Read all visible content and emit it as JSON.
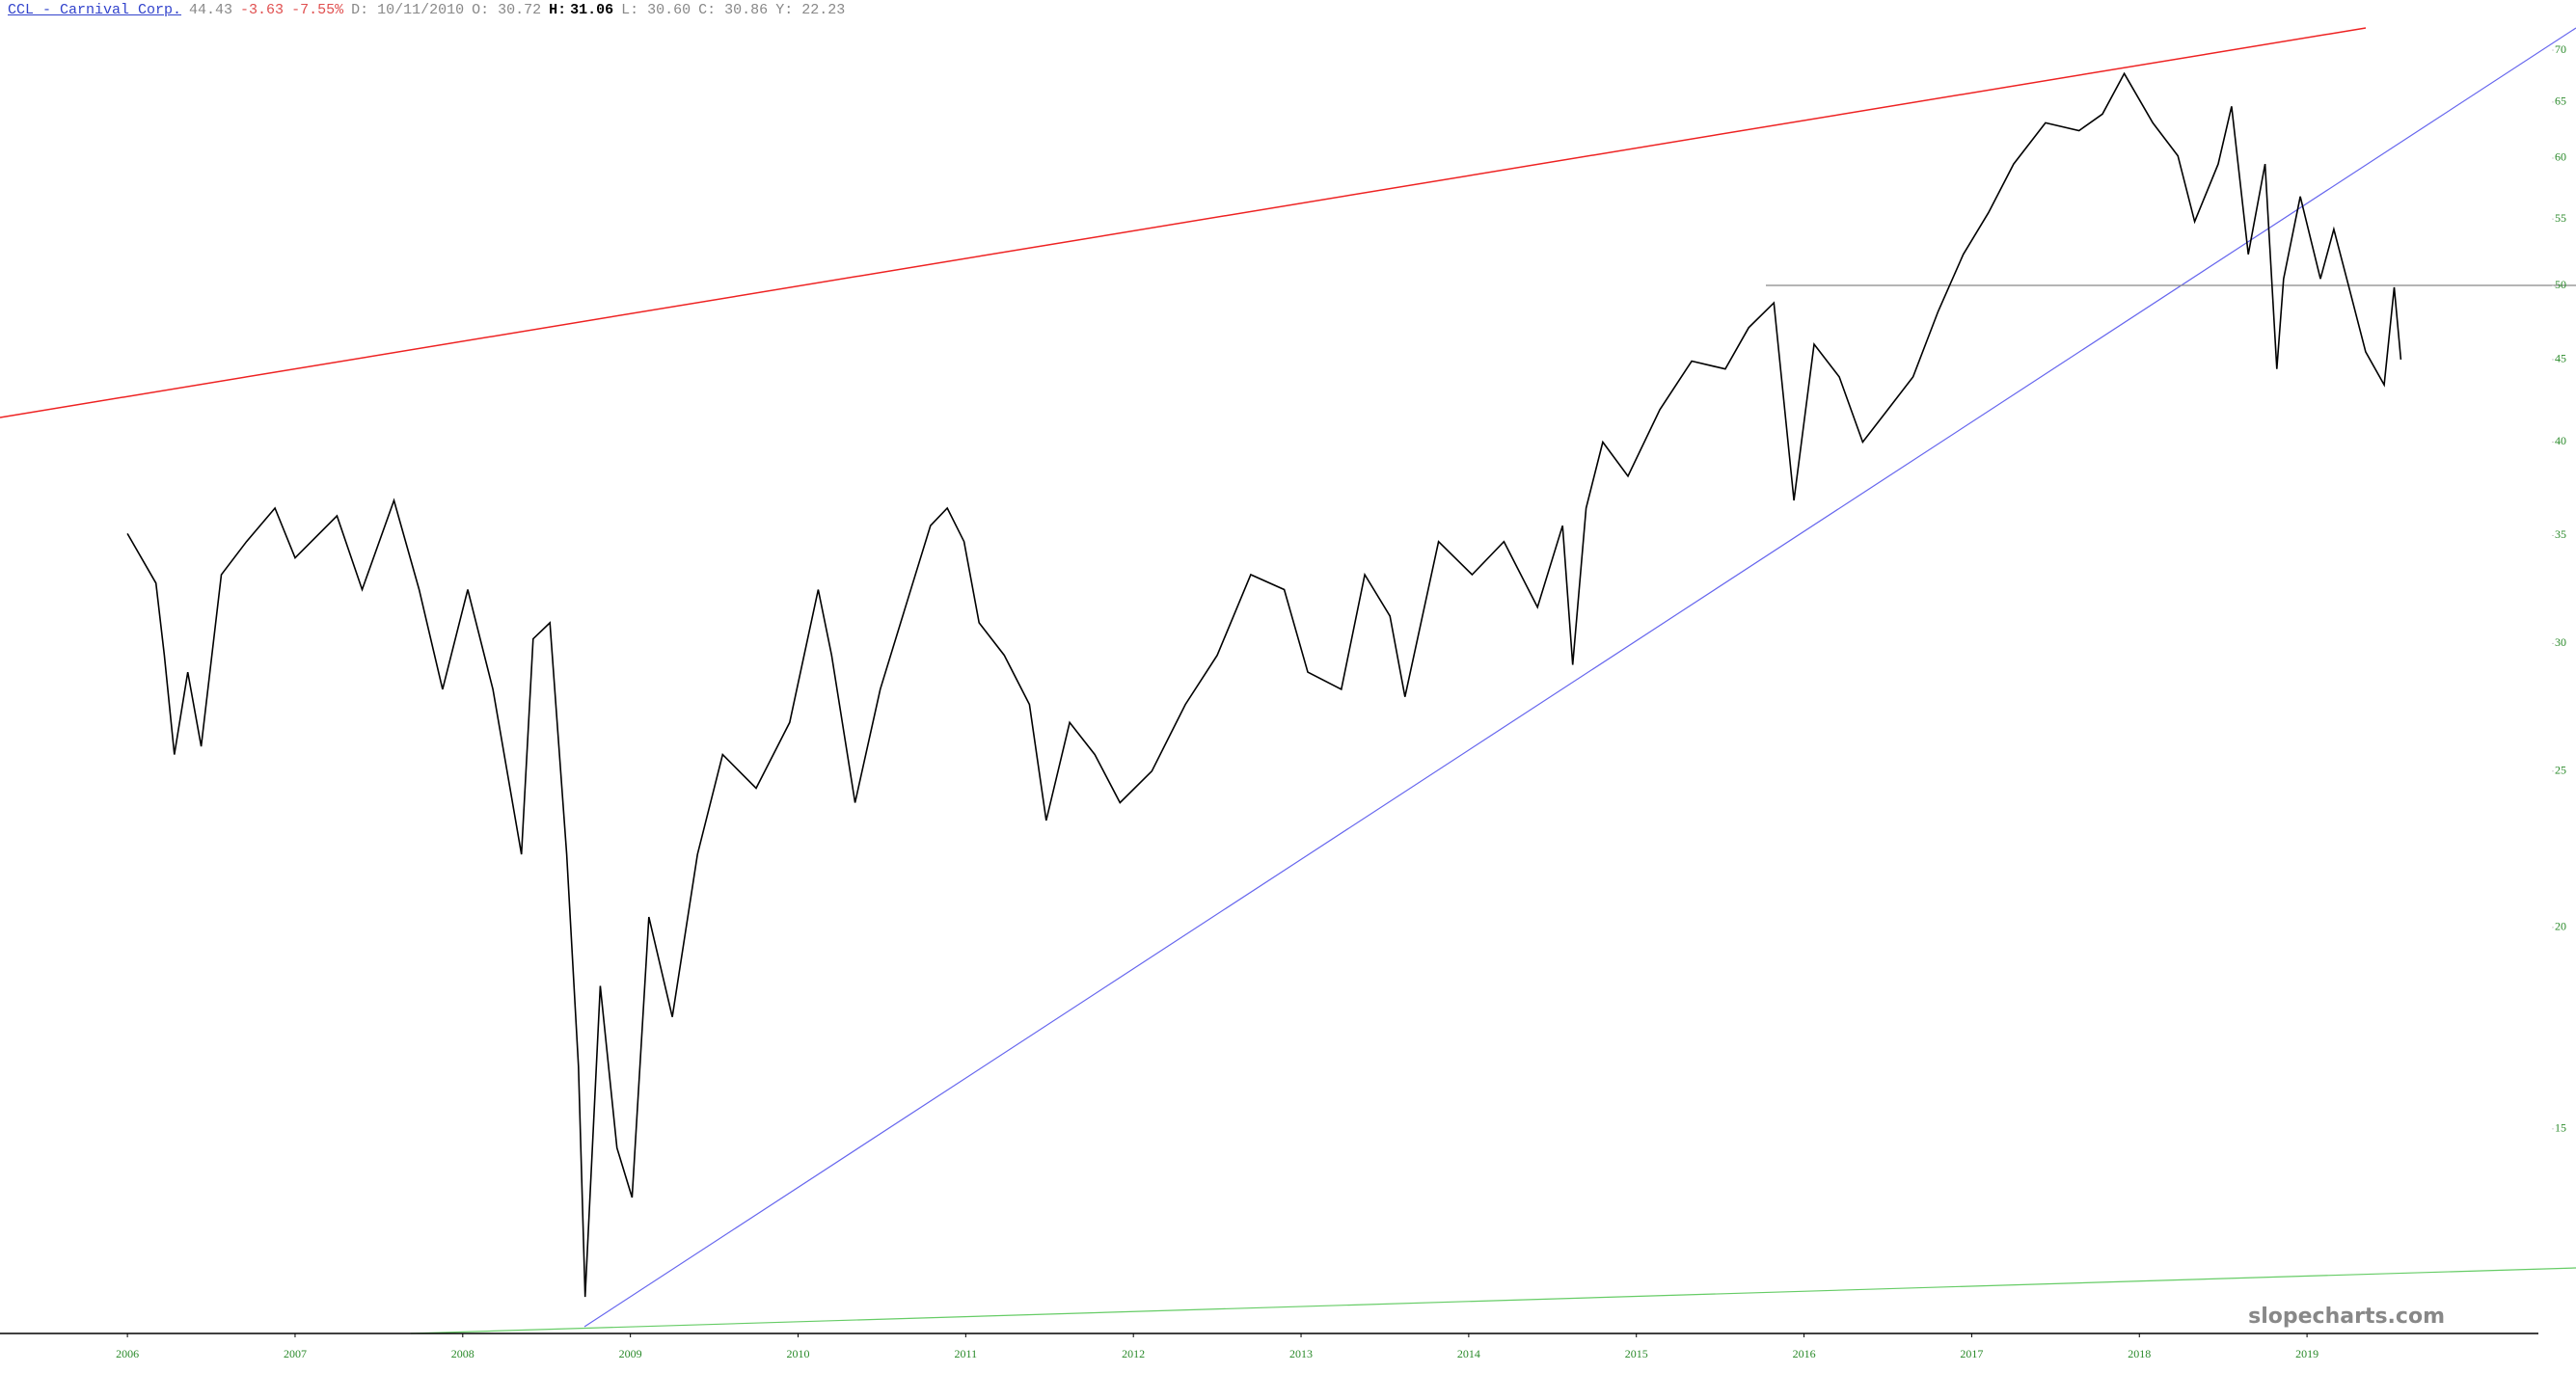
{
  "chart_data": {
    "type": "line",
    "header": {
      "ticker": "CCL - Carnival Corp.",
      "last": "44.43",
      "change": "-3.63",
      "change_pct": "-7.55%",
      "date": "D: 10/11/2010",
      "open": "O: 30.72",
      "high_label": "H:",
      "high": "31.06",
      "low": "L: 30.60",
      "close": "C: 30.86",
      "y": "Y: 22.23"
    },
    "watermark": "slopecharts.com",
    "log_scale": true,
    "xlim": [
      2005.24,
      2020.38
    ],
    "xticks": [
      2006,
      2007,
      2008,
      2009,
      2010,
      2011,
      2012,
      2013,
      2014,
      2015,
      2016,
      2017,
      2018,
      2019
    ],
    "ylim": [
      11.2,
      75.2
    ],
    "yticks": [
      15,
      20,
      25,
      30,
      35,
      40,
      45,
      50,
      55,
      60,
      65,
      70
    ],
    "series": [
      {
        "color": "#000000",
        "x": [
          2006.0,
          2006.17,
          2006.22,
          2006.28,
          2006.36,
          2006.44,
          2006.56,
          2006.71,
          2006.88,
          2007.0,
          2007.25,
          2007.4,
          2007.59,
          2007.74,
          2007.88,
          2008.03,
          2008.18,
          2008.35,
          2008.42,
          2008.52,
          2008.62,
          2008.69,
          2008.73,
          2008.82,
          2008.92,
          2009.01,
          2009.11,
          2009.25,
          2009.4,
          2009.55,
          2009.75,
          2009.95,
          2010.12,
          2010.2,
          2010.34,
          2010.49,
          2010.64,
          2010.79,
          2010.89,
          2010.99,
          2011.08,
          2011.23,
          2011.38,
          2011.48,
          2011.62,
          2011.77,
          2011.92,
          2012.11,
          2012.31,
          2012.5,
          2012.7,
          2012.9,
          2013.04,
          2013.24,
          2013.38,
          2013.53,
          2013.62,
          2013.82,
          2014.02,
          2014.21,
          2014.41,
          2014.56,
          2014.62,
          2014.7,
          2014.8,
          2014.95,
          2015.14,
          2015.33,
          2015.53,
          2015.67,
          2015.82,
          2015.94,
          2016.06,
          2016.21,
          2016.35,
          2016.5,
          2016.65,
          2016.8,
          2016.95,
          2017.1,
          2017.25,
          2017.44,
          2017.64,
          2017.78,
          2017.91,
          2018.08,
          2018.23,
          2018.33,
          2018.47,
          2018.55,
          2018.65,
          2018.75,
          2018.82,
          2018.86,
          2018.96,
          2019.08,
          2019.16,
          2019.25,
          2019.35,
          2019.46,
          2019.52,
          2019.56
        ],
        "values": [
          35.1,
          32.7,
          29.5,
          25.6,
          28.8,
          25.9,
          33.1,
          34.7,
          36.4,
          33.9,
          36.0,
          32.4,
          36.8,
          32.4,
          28.1,
          32.4,
          28.1,
          22.2,
          30.2,
          30.9,
          22.2,
          16.4,
          11.8,
          18.4,
          14.6,
          13.6,
          20.3,
          17.6,
          22.2,
          25.6,
          24.4,
          26.8,
          32.4,
          29.5,
          23.9,
          28.1,
          31.6,
          35.5,
          36.4,
          34.7,
          30.9,
          29.5,
          27.5,
          23.3,
          26.8,
          25.6,
          23.9,
          25.0,
          27.5,
          29.5,
          33.1,
          32.4,
          28.8,
          28.1,
          33.1,
          31.2,
          27.8,
          34.7,
          33.1,
          34.7,
          31.6,
          35.5,
          29.1,
          36.4,
          40.0,
          38.1,
          41.9,
          44.9,
          44.4,
          47.1,
          48.8,
          36.8,
          46.0,
          43.9,
          40.0,
          41.9,
          43.9,
          48.2,
          52.3,
          55.5,
          59.5,
          63.1,
          62.4,
          63.9,
          67.7,
          63.1,
          60.2,
          54.8,
          59.5,
          64.6,
          52.3,
          59.5,
          44.4,
          50.5,
          56.8,
          50.5,
          54.2,
          49.9,
          45.5,
          43.4,
          49.9,
          45.0
        ]
      }
    ]
  }
}
